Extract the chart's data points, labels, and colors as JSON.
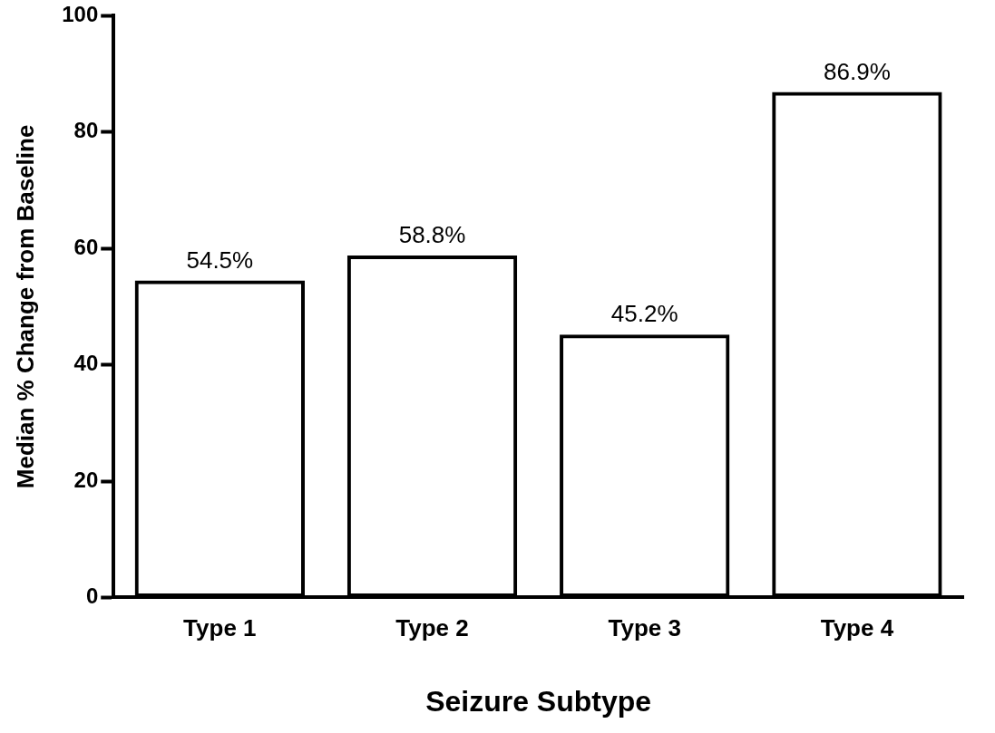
{
  "chart_data": {
    "type": "bar",
    "xlabel": "Seizure Subtype",
    "ylabel": "Median % Change from Baseline",
    "categories": [
      "Type 1",
      "Type 2",
      "Type 3",
      "Type 4"
    ],
    "values": [
      54.5,
      58.8,
      45.2,
      86.9
    ],
    "value_labels": [
      "54.5%",
      "58.8%",
      "45.2%",
      "86.9%"
    ],
    "color": "#000000",
    "ylim": [
      0,
      100
    ],
    "yticks": [
      0,
      20,
      40,
      60,
      80,
      100
    ],
    "grid": false,
    "legend": false
  }
}
